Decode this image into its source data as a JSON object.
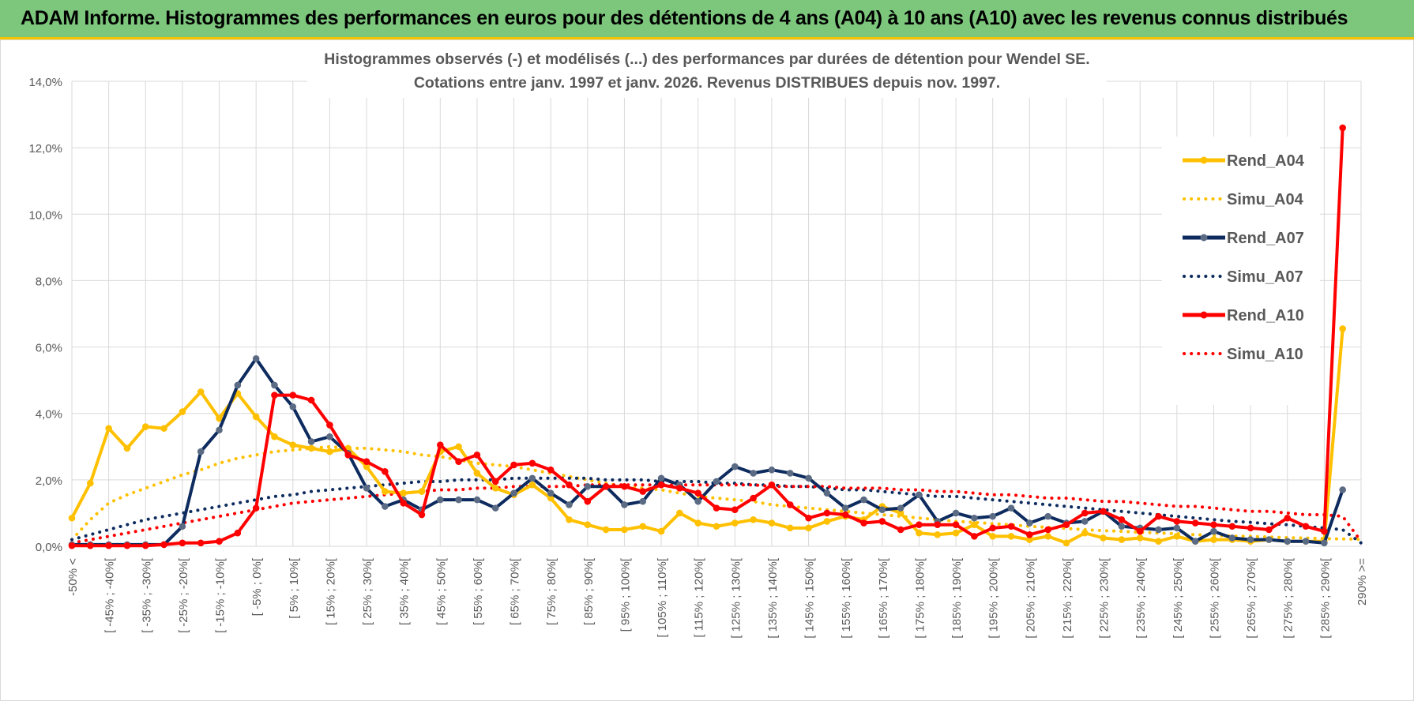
{
  "header": {
    "title": "ADAM Informe. Histogrammes des performances en euros pour des détentions de 4 ans (A04) à 10 ans (A10) avec les revenus connus distribués"
  },
  "colors": {
    "banner": "#7dc77d",
    "banner_border": "#f5c400",
    "A04": "#ffc000",
    "A07": "#0d2b5e",
    "A07_marker": "#5b6b84",
    "A10": "#ff0000",
    "grid": "#d9d9d9"
  },
  "chart_data": {
    "type": "line",
    "title_lines": [
      "Histogrammes observés (-) et modélisés (...) des performances par durées de détention pour Wendel SE.",
      "Cotations entre janv. 1997 et janv. 2026. Revenus DISTRIBUES depuis nov. 1997."
    ],
    "ylim": [
      0,
      14
    ],
    "yticks": [
      0,
      2,
      4,
      6,
      8,
      10,
      12,
      14
    ],
    "ytick_labels": [
      "0,0%",
      "2,0%",
      "4,0%",
      "6,0%",
      "8,0%",
      "10,0%",
      "12,0%",
      "14,0%"
    ],
    "y_unit": "%",
    "n_categories": 71,
    "x_labels": [
      {
        "index": 0,
        "label": "-50% <"
      },
      {
        "index": 2,
        "label": "[ -45% ; -40%["
      },
      {
        "index": 4,
        "label": "[ -35% ; -30%["
      },
      {
        "index": 6,
        "label": "[ -25% ; -20%["
      },
      {
        "index": 8,
        "label": "[ -15% ; -10%["
      },
      {
        "index": 10,
        "label": "[ -5% ; 0%["
      },
      {
        "index": 12,
        "label": "[ 5% ; 10%["
      },
      {
        "index": 14,
        "label": "[ 15% ; 20%["
      },
      {
        "index": 16,
        "label": "[ 25% ; 30%["
      },
      {
        "index": 18,
        "label": "[ 35% ; 40%["
      },
      {
        "index": 20,
        "label": "[ 45% ; 50%["
      },
      {
        "index": 22,
        "label": "[ 55% ; 60%["
      },
      {
        "index": 24,
        "label": "[ 65% ; 70%["
      },
      {
        "index": 26,
        "label": "[ 75% ; 80%["
      },
      {
        "index": 28,
        "label": "[ 85% ; 90%["
      },
      {
        "index": 30,
        "label": "[ 95% ; 100%["
      },
      {
        "index": 32,
        "label": "[ 105% ; 110%["
      },
      {
        "index": 34,
        "label": "[ 115% ; 120%["
      },
      {
        "index": 36,
        "label": "[ 125% ; 130%["
      },
      {
        "index": 38,
        "label": "[ 135% ; 140%["
      },
      {
        "index": 40,
        "label": "[ 145% ; 150%["
      },
      {
        "index": 42,
        "label": "[ 155% ; 160%["
      },
      {
        "index": 44,
        "label": "[ 165% ; 170%["
      },
      {
        "index": 46,
        "label": "[ 175% ; 180%["
      },
      {
        "index": 48,
        "label": "[ 185% ; 190%["
      },
      {
        "index": 50,
        "label": "[ 195% ; 200%["
      },
      {
        "index": 52,
        "label": "[ 205% ; 210%["
      },
      {
        "index": 54,
        "label": "[ 215% ; 220%["
      },
      {
        "index": 56,
        "label": "[ 225% ; 230%["
      },
      {
        "index": 58,
        "label": "[ 235% ; 240%["
      },
      {
        "index": 60,
        "label": "[ 245% ; 250%["
      },
      {
        "index": 62,
        "label": "[ 255% ; 260%["
      },
      {
        "index": 64,
        "label": "[ 265% ; 270%["
      },
      {
        "index": 66,
        "label": "[ 275% ; 280%["
      },
      {
        "index": 68,
        "label": "[ 285% ; 290%["
      },
      {
        "index": 70,
        "label": "290% >="
      }
    ],
    "legend_position": "right",
    "series": [
      {
        "name": "Rend_A04",
        "style": "solid",
        "color": "#ffc000",
        "marker_color": "#ffc000",
        "values": [
          0.85,
          1.9,
          3.55,
          2.95,
          3.6,
          3.55,
          4.05,
          4.65,
          3.85,
          4.6,
          3.9,
          3.3,
          3.05,
          2.95,
          2.85,
          2.95,
          2.4,
          1.65,
          1.6,
          1.65,
          2.85,
          3.0,
          2.2,
          1.75,
          1.55,
          1.85,
          1.45,
          0.8,
          0.65,
          0.5,
          0.5,
          0.6,
          0.45,
          1.0,
          0.7,
          0.6,
          0.7,
          0.8,
          0.7,
          0.55,
          0.55,
          0.75,
          0.9,
          0.8,
          1.2,
          1.0,
          0.4,
          0.35,
          0.4,
          0.65,
          0.3,
          0.3,
          0.2,
          0.3,
          0.1,
          0.4,
          0.25,
          0.2,
          0.25,
          0.15,
          0.3,
          0.15,
          0.2,
          0.2,
          0.15,
          0.2,
          0.15,
          0.15,
          0.15,
          6.55,
          null
        ]
      },
      {
        "name": "Simu_A04",
        "style": "dotted",
        "color": "#ffc000",
        "values": [
          0.2,
          0.8,
          1.3,
          1.55,
          1.75,
          1.95,
          2.15,
          2.3,
          2.5,
          2.65,
          2.75,
          2.85,
          2.9,
          2.95,
          3.0,
          2.95,
          2.95,
          2.9,
          2.85,
          2.75,
          2.7,
          2.6,
          2.5,
          2.45,
          2.4,
          2.3,
          2.2,
          2.1,
          2.0,
          1.9,
          1.8,
          1.75,
          1.7,
          1.6,
          1.5,
          1.45,
          1.4,
          1.35,
          1.25,
          1.2,
          1.15,
          1.1,
          1.05,
          1.0,
          0.95,
          0.9,
          0.85,
          0.8,
          0.75,
          0.72,
          0.68,
          0.65,
          0.6,
          0.57,
          0.54,
          0.5,
          0.47,
          0.45,
          0.42,
          0.4,
          0.38,
          0.35,
          0.33,
          0.31,
          0.3,
          0.28,
          0.26,
          0.25,
          0.23,
          0.22,
          0.21
        ]
      },
      {
        "name": "Rend_A07",
        "style": "solid",
        "color": "#0d2b5e",
        "marker_color": "#5b6b84",
        "values": [
          0.05,
          0.05,
          0.05,
          0.05,
          0.05,
          0.05,
          0.6,
          2.85,
          3.5,
          4.85,
          5.65,
          4.85,
          4.2,
          3.15,
          3.3,
          2.8,
          1.75,
          1.2,
          1.4,
          1.1,
          1.4,
          1.4,
          1.4,
          1.15,
          1.6,
          2.05,
          1.6,
          1.25,
          1.8,
          1.8,
          1.25,
          1.35,
          2.05,
          1.85,
          1.35,
          1.95,
          2.4,
          2.2,
          2.3,
          2.2,
          2.05,
          1.6,
          1.15,
          1.4,
          1.1,
          1.15,
          1.55,
          0.75,
          1.0,
          0.85,
          0.9,
          1.15,
          0.7,
          0.9,
          0.7,
          0.75,
          1.05,
          0.6,
          0.55,
          0.5,
          0.55,
          0.15,
          0.45,
          0.25,
          0.2,
          0.2,
          0.15,
          0.15,
          0.1,
          1.7,
          null
        ]
      },
      {
        "name": "Simu_A07",
        "style": "dotted",
        "color": "#0d2b5e",
        "values": [
          0.2,
          0.35,
          0.5,
          0.65,
          0.8,
          0.9,
          1.0,
          1.1,
          1.2,
          1.3,
          1.4,
          1.5,
          1.55,
          1.65,
          1.7,
          1.75,
          1.8,
          1.85,
          1.9,
          1.95,
          1.95,
          2.0,
          2.0,
          2.0,
          2.05,
          2.05,
          2.05,
          2.05,
          2.05,
          2.0,
          2.0,
          2.0,
          1.95,
          1.95,
          1.95,
          1.9,
          1.9,
          1.85,
          1.85,
          1.8,
          1.8,
          1.75,
          1.7,
          1.7,
          1.65,
          1.6,
          1.55,
          1.5,
          1.5,
          1.45,
          1.4,
          1.35,
          1.3,
          1.25,
          1.2,
          1.15,
          1.1,
          1.05,
          1.0,
          0.95,
          0.9,
          0.85,
          0.8,
          0.75,
          0.72,
          0.68,
          0.65,
          0.6,
          0.55,
          0.5,
          0.1
        ]
      },
      {
        "name": "Rend_A10",
        "style": "solid",
        "color": "#ff0000",
        "marker_color": "#ff0000",
        "values": [
          0.02,
          0.02,
          0.02,
          0.02,
          0.02,
          0.05,
          0.1,
          0.1,
          0.15,
          0.4,
          1.15,
          4.55,
          4.55,
          4.4,
          3.65,
          2.75,
          2.55,
          2.25,
          1.3,
          0.95,
          3.05,
          2.55,
          2.75,
          1.95,
          2.45,
          2.5,
          2.3,
          1.85,
          1.35,
          1.8,
          1.8,
          1.65,
          1.85,
          1.75,
          1.6,
          1.15,
          1.1,
          1.45,
          1.85,
          1.25,
          0.85,
          1.0,
          0.95,
          0.7,
          0.75,
          0.5,
          0.65,
          0.65,
          0.65,
          0.3,
          0.55,
          0.6,
          0.35,
          0.5,
          0.65,
          1.0,
          1.05,
          0.8,
          0.45,
          0.9,
          0.75,
          0.7,
          0.65,
          0.6,
          0.55,
          0.5,
          0.85,
          0.6,
          0.45,
          12.6,
          null
        ]
      },
      {
        "name": "Simu_A10",
        "style": "dotted",
        "color": "#ff0000",
        "values": [
          0.1,
          0.2,
          0.3,
          0.4,
          0.5,
          0.6,
          0.7,
          0.8,
          0.9,
          1.0,
          1.1,
          1.2,
          1.3,
          1.35,
          1.4,
          1.45,
          1.5,
          1.55,
          1.6,
          1.65,
          1.7,
          1.7,
          1.75,
          1.75,
          1.8,
          1.8,
          1.8,
          1.8,
          1.85,
          1.85,
          1.85,
          1.85,
          1.85,
          1.85,
          1.85,
          1.85,
          1.85,
          1.85,
          1.8,
          1.8,
          1.8,
          1.8,
          1.75,
          1.75,
          1.75,
          1.7,
          1.7,
          1.65,
          1.65,
          1.6,
          1.55,
          1.55,
          1.5,
          1.45,
          1.45,
          1.4,
          1.35,
          1.35,
          1.3,
          1.25,
          1.2,
          1.2,
          1.15,
          1.1,
          1.05,
          1.05,
          1.0,
          0.95,
          0.95,
          0.9,
          0.15
        ]
      }
    ]
  }
}
